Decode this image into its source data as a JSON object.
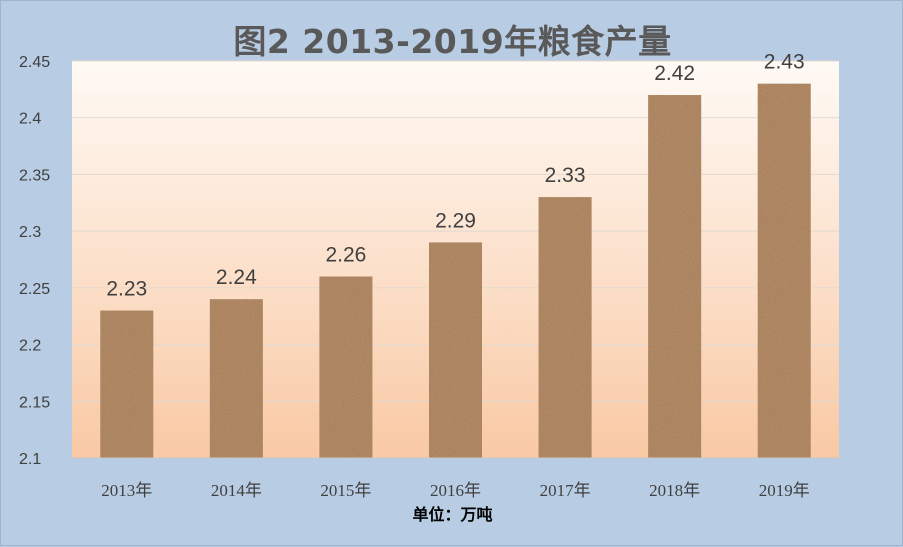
{
  "chart_data": {
    "type": "bar",
    "title": "图2   2013-2019年粮食产量",
    "categories": [
      "2013年",
      "2014年",
      "2015年",
      "2016年",
      "2017年",
      "2018年",
      "2019年"
    ],
    "values": [
      2.23,
      2.24,
      2.26,
      2.29,
      2.33,
      2.42,
      2.43
    ],
    "data_labels": [
      "2.23",
      "2.24",
      "2.26",
      "2.29",
      "2.33",
      "2.42",
      "2.43"
    ],
    "yticks": [
      "2.1",
      "2.15",
      "2.2",
      "2.25",
      "2.3",
      "2.35",
      "2.4",
      "2.45"
    ],
    "ylim": [
      2.1,
      2.45
    ],
    "unit_label": "单位：万吨",
    "grid": true,
    "legend": "none",
    "colors": {
      "frame": "#b8cce4",
      "plot_top": "#fffaf5",
      "plot_bottom": "#f9c9a4",
      "bar": "#b98f69",
      "gridline": "#e2d8d0"
    }
  }
}
